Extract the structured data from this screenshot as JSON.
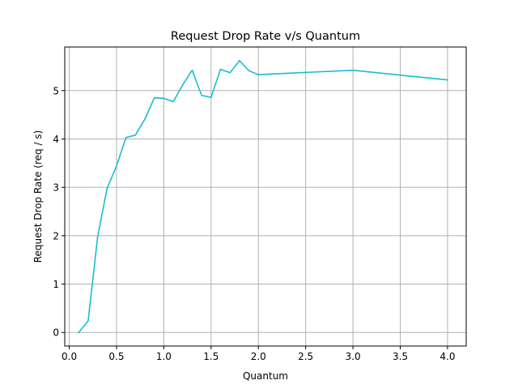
{
  "chart_data": {
    "type": "line",
    "title": "Request Drop Rate v/s Quantum",
    "xlabel": "Quantum",
    "ylabel": "Request Drop Rate (req / s)",
    "xlim": [
      -0.0475,
      4.1975
    ],
    "ylim": [
      -0.281,
      5.901
    ],
    "xticks": [
      0.0,
      0.5,
      1.0,
      1.5,
      2.0,
      2.5,
      3.0,
      3.5,
      4.0
    ],
    "xtick_labels": [
      "0.0",
      "0.5",
      "1.0",
      "1.5",
      "2.0",
      "2.5",
      "3.0",
      "3.5",
      "4.0"
    ],
    "yticks": [
      0,
      1,
      2,
      3,
      4,
      5
    ],
    "ytick_labels": [
      "0",
      "1",
      "2",
      "3",
      "4",
      "5"
    ],
    "grid": true,
    "series": [
      {
        "color": "#17becf",
        "x": [
          0.1,
          0.2,
          0.3,
          0.4,
          0.5,
          0.6,
          0.7,
          0.8,
          0.9,
          1.0,
          1.1,
          1.2,
          1.3,
          1.4,
          1.5,
          1.6,
          1.7,
          1.8,
          1.9,
          2.0,
          3.0,
          4.0
        ],
        "values": [
          0.0,
          0.24,
          1.97,
          2.98,
          3.44,
          4.03,
          4.08,
          4.41,
          4.85,
          4.84,
          4.77,
          5.12,
          5.42,
          4.9,
          4.86,
          5.44,
          5.37,
          5.62,
          5.41,
          5.33,
          5.42,
          5.22
        ]
      }
    ]
  }
}
